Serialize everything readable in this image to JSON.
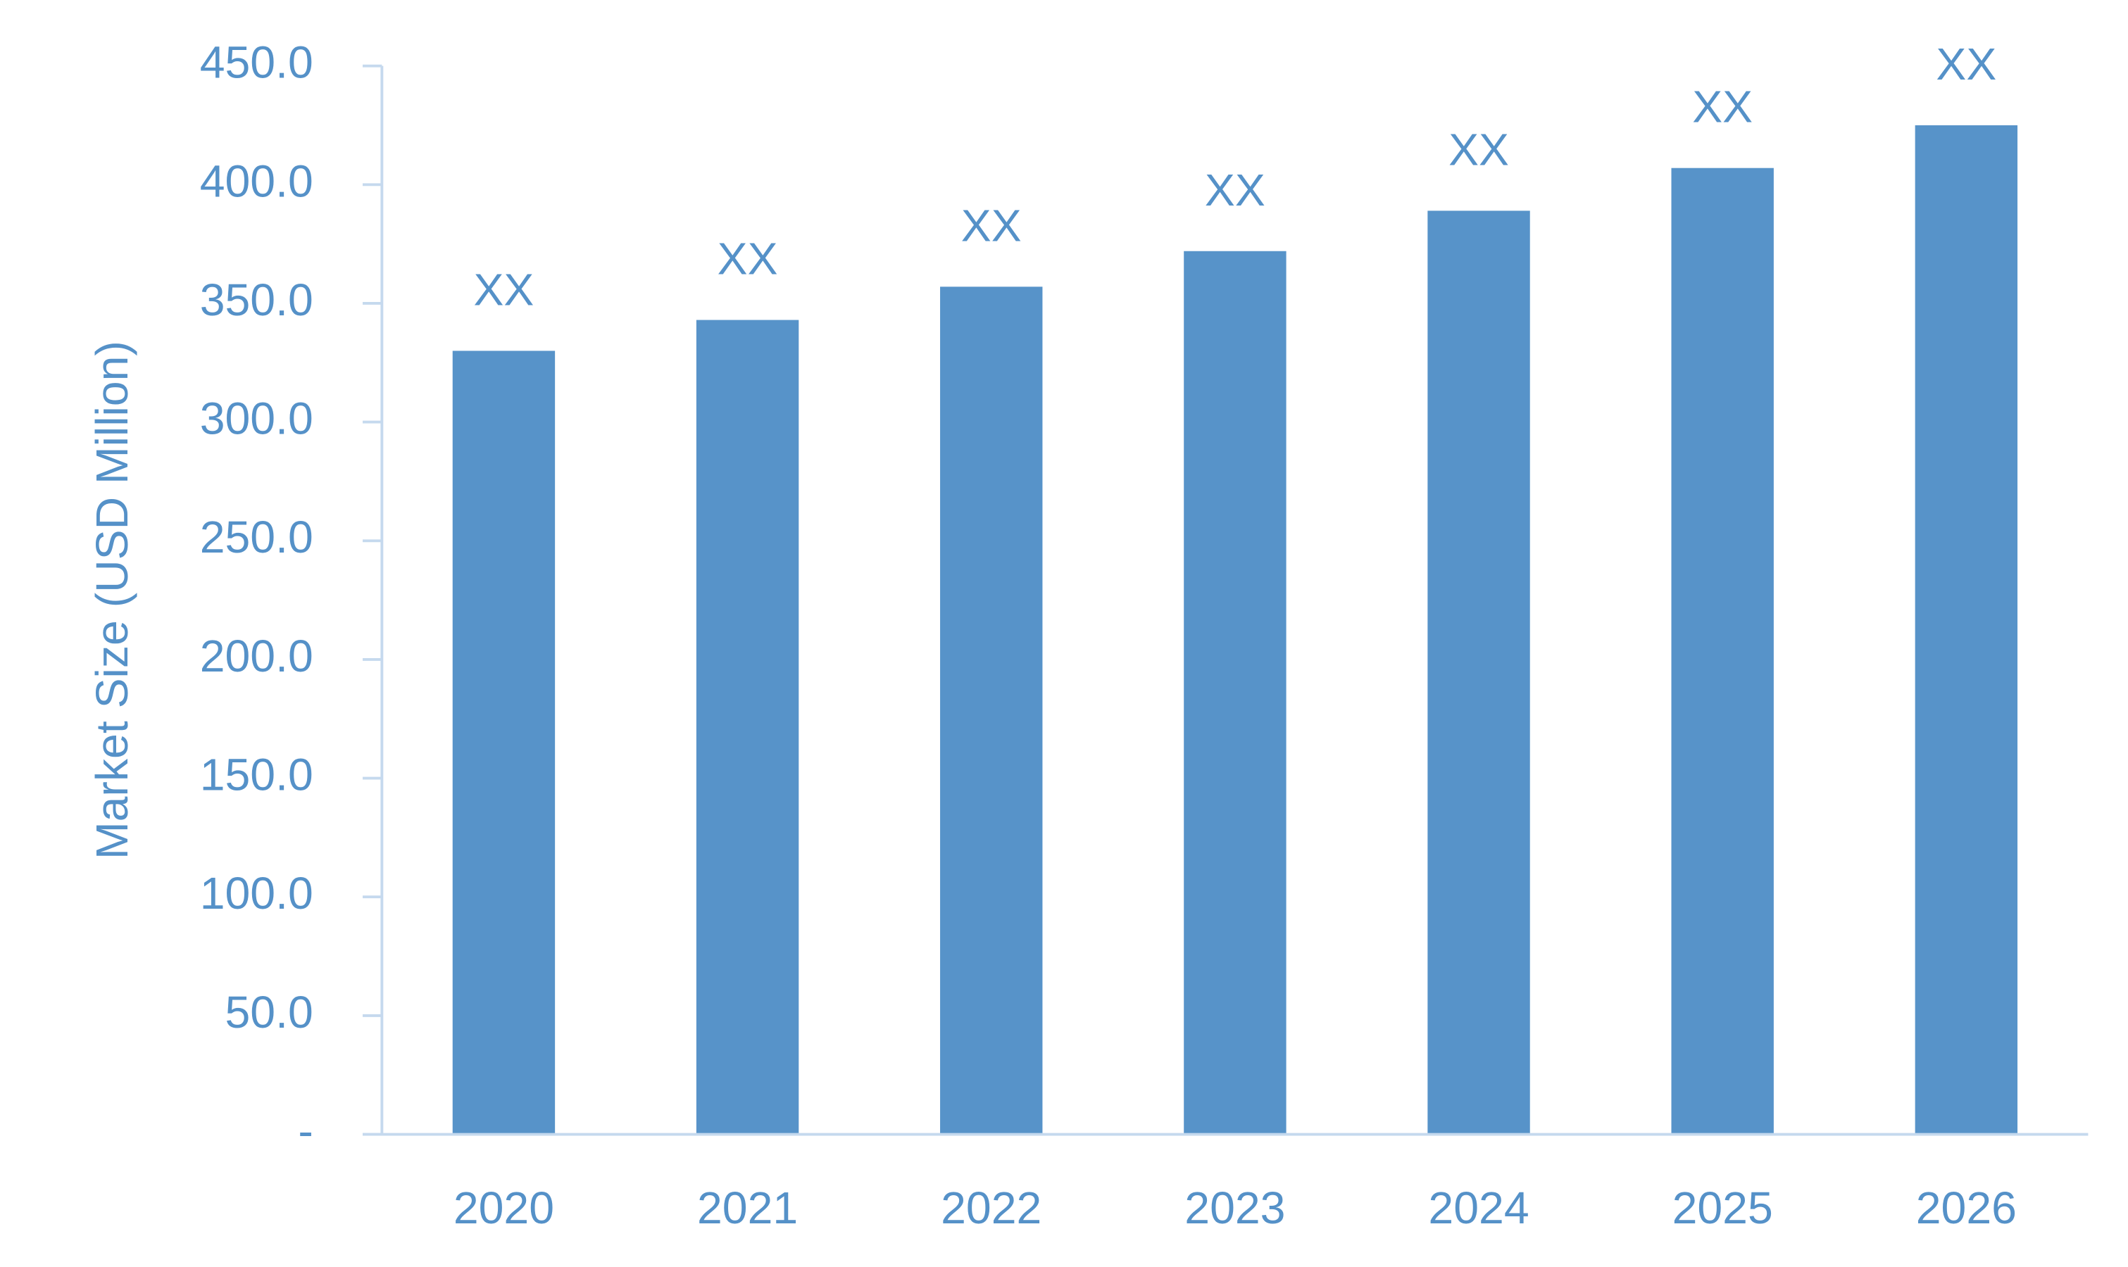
{
  "chart_data": {
    "type": "bar",
    "y_label": "Market Size (USD Million)",
    "categories": [
      "2020",
      "2021",
      "2022",
      "2023",
      "2024",
      "2025",
      "2026"
    ],
    "values": [
      330,
      343,
      357,
      372,
      389,
      407,
      425
    ],
    "value_labels": [
      "XX",
      "XX",
      "XX",
      "XX",
      "XX",
      "XX",
      "XX"
    ],
    "color": "#5793c9",
    "ylim": [
      0,
      450
    ],
    "yticks": [
      {
        "value": 0,
        "label": "-"
      },
      {
        "value": 50,
        "label": "50.0"
      },
      {
        "value": 100,
        "label": "100.0"
      },
      {
        "value": 150,
        "label": "150.0"
      },
      {
        "value": 200,
        "label": "200.0"
      },
      {
        "value": 250,
        "label": "250.0"
      },
      {
        "value": 300,
        "label": "300.0"
      },
      {
        "value": 350,
        "label": "350.0"
      },
      {
        "value": 400,
        "label": "400.0"
      },
      {
        "value": 450,
        "label": "450.0"
      }
    ],
    "grid": false
  }
}
